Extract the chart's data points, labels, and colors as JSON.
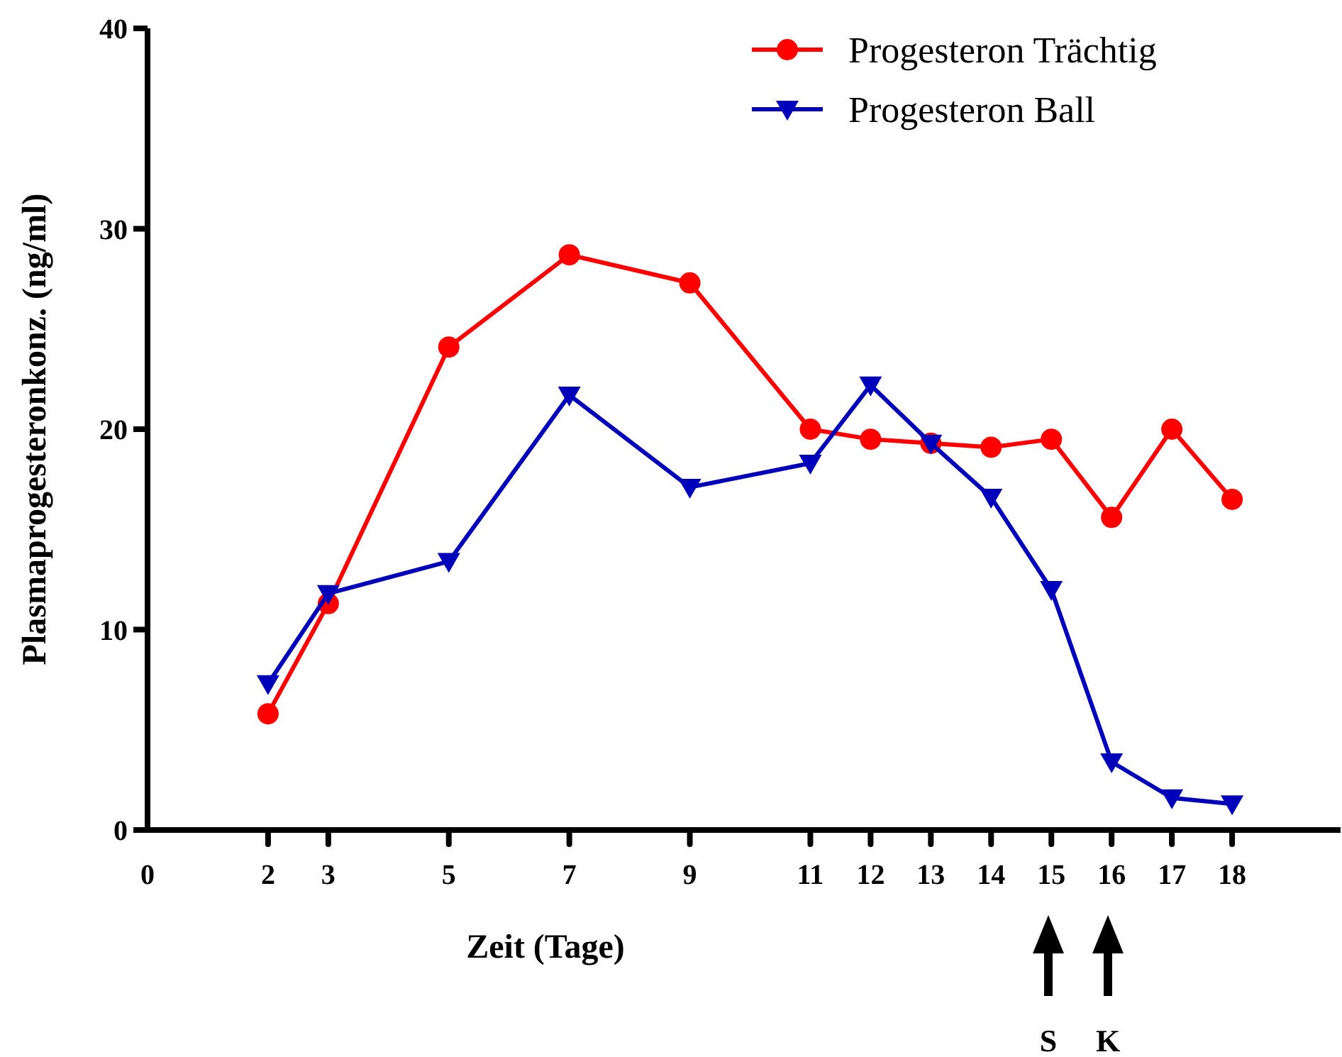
{
  "chart_data": {
    "type": "line",
    "xlabel": "Zeit (Tage)",
    "ylabel": "Plasmaprogesteronkonz. (ng/ml)",
    "x": [
      2,
      3,
      5,
      7,
      9,
      11,
      12,
      13,
      14,
      15,
      16,
      17,
      18
    ],
    "series": [
      {
        "name": "Progesteron Trächtig",
        "color": "#ff0000",
        "marker": "circle",
        "values": [
          5.8,
          11.3,
          24.1,
          28.7,
          27.3,
          20.0,
          19.5,
          19.3,
          19.1,
          19.5,
          15.6,
          20.0,
          16.5
        ]
      },
      {
        "name": "Progesteron Ball",
        "color": "#0000bb",
        "marker": "triangle",
        "values": [
          7.3,
          11.8,
          13.4,
          21.7,
          17.1,
          18.3,
          22.2,
          19.3,
          16.6,
          12.0,
          3.4,
          1.6,
          1.3
        ]
      }
    ],
    "xlim": [
      0,
      19.8
    ],
    "xticks": [
      0,
      2,
      3,
      5,
      7,
      9,
      11,
      12,
      13,
      14,
      15,
      16,
      17,
      18
    ],
    "ylim": [
      0,
      40
    ],
    "yticks": [
      0,
      10,
      20,
      30,
      40
    ],
    "grid": false,
    "legend": "top right",
    "annotations": [
      "S",
      "K"
    ]
  }
}
